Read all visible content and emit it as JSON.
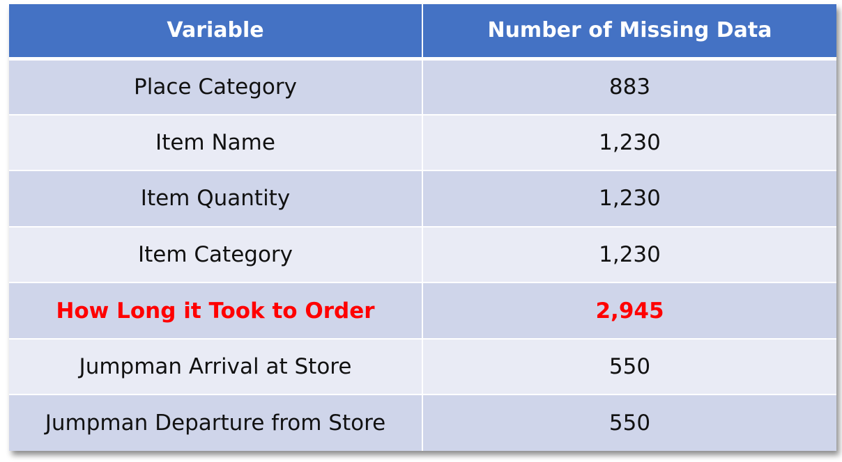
{
  "table": {
    "headers": [
      "Variable",
      "Number of Missing Data"
    ],
    "rows": [
      {
        "variable": "Place Category",
        "missing": "883"
      },
      {
        "variable": "Item Name",
        "missing": "1,230"
      },
      {
        "variable": "Item Quantity",
        "missing": "1,230"
      },
      {
        "variable": "Item Category",
        "missing": "1,230"
      },
      {
        "variable": "How Long it Took to Order",
        "missing": "2,945"
      },
      {
        "variable": "Jumpman Arrival at Store",
        "missing": "550"
      },
      {
        "variable": "Jumpman Departure from Store",
        "missing": "550"
      }
    ],
    "highlight_row_index": 4,
    "colors": {
      "header_bg": "#4472c4",
      "row_odd_bg": "#cfd5ea",
      "row_even_bg": "#e9ebf5",
      "highlight_text": "#ff0000"
    }
  }
}
